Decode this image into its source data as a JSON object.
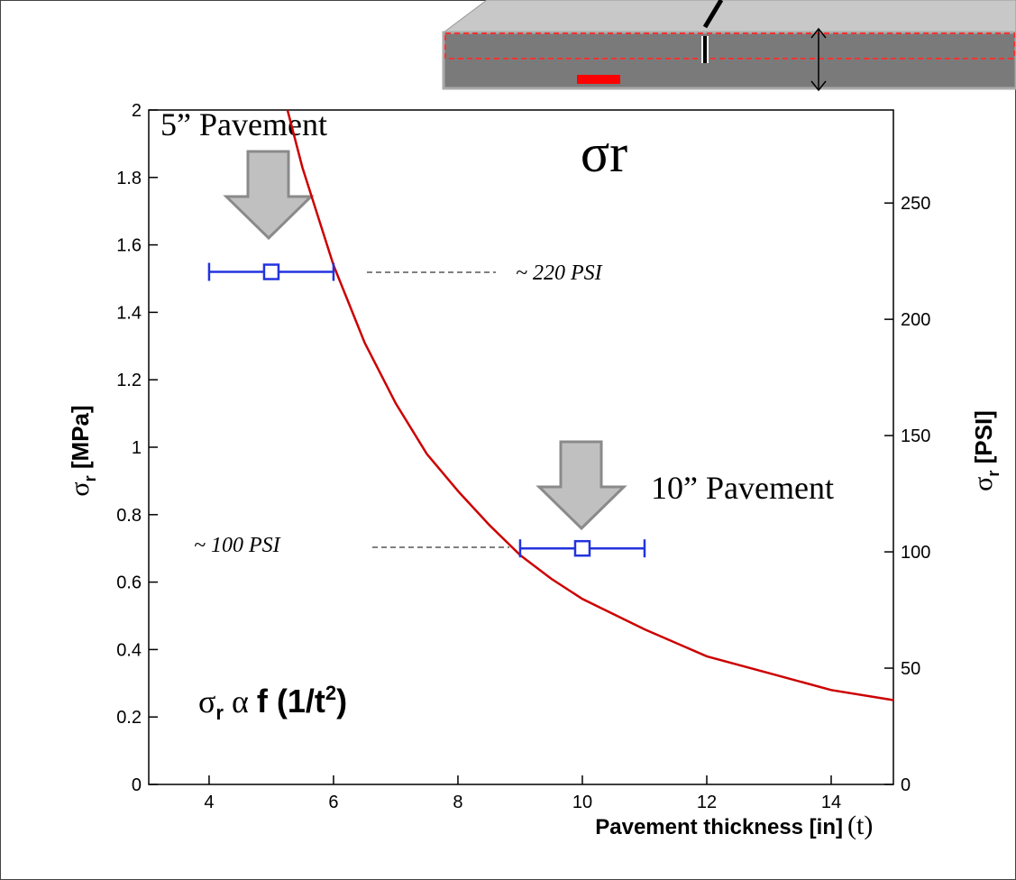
{
  "chart_data": {
    "type": "line",
    "title": "σr",
    "x_label_parts": [
      "Pavement thickness [in]",
      "(t)"
    ],
    "y_label_parts": [
      "σ",
      "r",
      " [MPa]"
    ],
    "y2_label_parts": [
      "σ",
      "r",
      " [PSI]"
    ],
    "annotations": {
      "thin": "5” Pavement",
      "thick": "10” Pavement",
      "psi_high": "~ 220 PSI",
      "psi_low": "~ 100 PSI",
      "formula_parts": [
        "σ",
        "r",
        " α ",
        "f (1/t",
        "2",
        ")"
      ]
    },
    "xlim": [
      3.03,
      15
    ],
    "xticks": [
      4,
      6,
      8,
      10,
      12,
      14
    ],
    "ylim": [
      0,
      2
    ],
    "yticks": [
      0,
      0.2,
      0.4,
      0.6,
      0.8,
      1,
      1.2,
      1.4,
      1.6,
      1.8,
      2
    ],
    "y2lim": [
      0,
      290
    ],
    "y2ticks": [
      0,
      50,
      100,
      150,
      200,
      250
    ],
    "series": [
      {
        "type": "line",
        "color": "#cc0000",
        "x": [
          5.26,
          5.5,
          6,
          6.5,
          7,
          7.5,
          8,
          8.5,
          9,
          9.5,
          10,
          11,
          12,
          13,
          14,
          15
        ],
        "values": [
          2,
          1.83,
          1.54,
          1.31,
          1.13,
          0.98,
          0.87,
          0.77,
          0.68,
          0.61,
          0.55,
          0.46,
          0.38,
          0.33,
          0.28,
          0.25
        ]
      },
      {
        "type": "errorbar",
        "color": "#2233dd",
        "x": [
          5,
          10
        ],
        "values": [
          1.52,
          0.7
        ],
        "xerr": [
          1,
          1
        ]
      }
    ]
  }
}
